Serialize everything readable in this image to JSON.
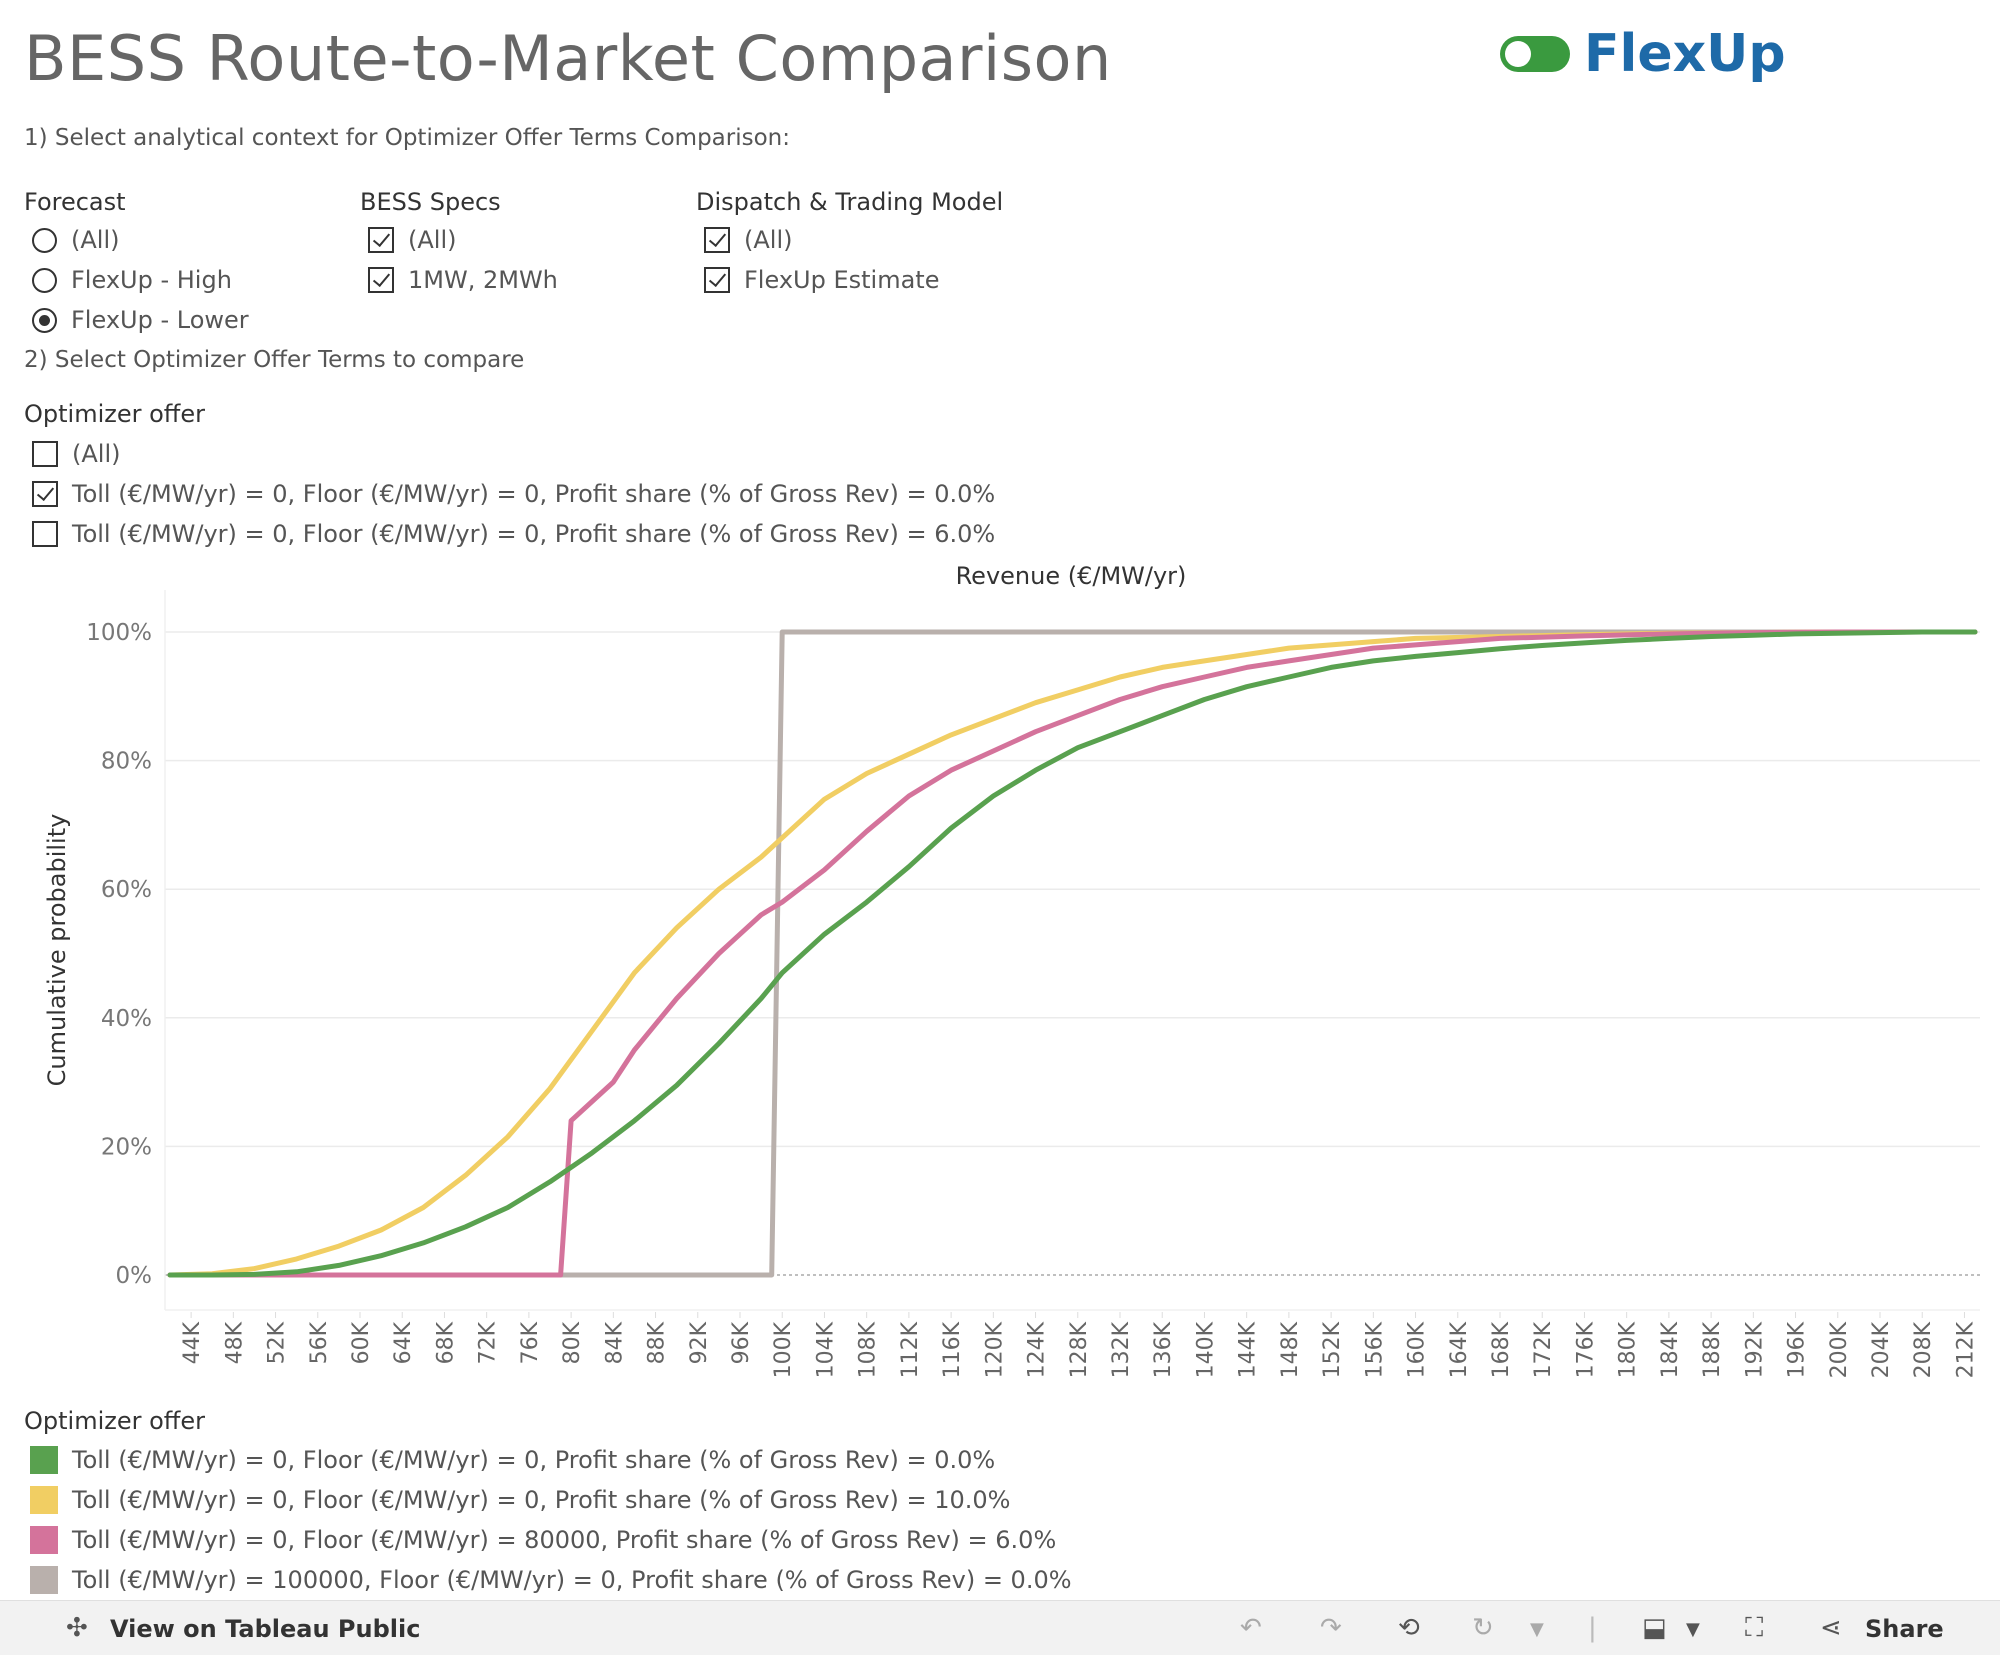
{
  "title": "BESS Route-to-Market Comparison",
  "logo": {
    "text": "FlexUp",
    "color": "#1e6aa8",
    "toggle_color": "#3a9a3f"
  },
  "step1": "1) Select analytical context for Optimizer Offer Terms Comparison:",
  "filters": {
    "forecast": {
      "title": "Forecast",
      "options": [
        {
          "label": "(All)",
          "selected": false
        },
        {
          "label": "FlexUp - High",
          "selected": false
        },
        {
          "label": "FlexUp - Lower",
          "selected": true
        }
      ]
    },
    "specs": {
      "title": "BESS Specs",
      "options": [
        {
          "label": "(All)",
          "checked": true
        },
        {
          "label": "1MW, 2MWh",
          "checked": true
        }
      ]
    },
    "dispatch": {
      "title": "Dispatch & Trading Model",
      "options": [
        {
          "label": "(All)",
          "checked": true
        },
        {
          "label": "FlexUp Estimate",
          "checked": true
        }
      ]
    }
  },
  "step2": "2) Select Optimizer Offer Terms to compare",
  "offer_filter": {
    "title": "Optimizer offer",
    "options": [
      {
        "label": "(All)",
        "checked": false
      },
      {
        "label": "Toll (€/MW/yr) = 0, Floor (€/MW/yr) = 0, Profit share (% of Gross Rev) = 0.0%",
        "checked": true
      },
      {
        "label": "Toll (€/MW/yr) = 0, Floor (€/MW/yr) = 0, Profit share (% of Gross Rev) = 6.0%",
        "checked": false
      }
    ]
  },
  "chart_data": {
    "type": "line",
    "title": "Revenue (€/MW/yr)",
    "xlabel": "Revenue (€/MW/yr)",
    "ylabel": "Cumulative probability",
    "xlim": [
      42000,
      213000
    ],
    "ylim": [
      0,
      1
    ],
    "x_ticks": [
      44000,
      48000,
      52000,
      56000,
      60000,
      64000,
      68000,
      72000,
      76000,
      80000,
      84000,
      88000,
      92000,
      96000,
      100000,
      104000,
      108000,
      112000,
      116000,
      120000,
      124000,
      128000,
      132000,
      136000,
      140000,
      144000,
      148000,
      152000,
      156000,
      160000,
      164000,
      168000,
      172000,
      176000,
      180000,
      184000,
      188000,
      192000,
      196000,
      200000,
      204000,
      208000,
      212000
    ],
    "x_tick_labels": [
      "44K",
      "48K",
      "52K",
      "56K",
      "60K",
      "64K",
      "68K",
      "72K",
      "76K",
      "80K",
      "84K",
      "88K",
      "92K",
      "96K",
      "100K",
      "104K",
      "108K",
      "112K",
      "116K",
      "120K",
      "124K",
      "128K",
      "132K",
      "136K",
      "140K",
      "144K",
      "148K",
      "152K",
      "156K",
      "160K",
      "164K",
      "168K",
      "172K",
      "176K",
      "180K",
      "184K",
      "188K",
      "192K",
      "196K",
      "200K",
      "204K",
      "208K",
      "212K"
    ],
    "y_ticks": [
      0,
      0.2,
      0.4,
      0.6,
      0.8,
      1.0
    ],
    "y_tick_labels": [
      "0%",
      "20%",
      "40%",
      "60%",
      "80%",
      "100%"
    ],
    "series": [
      {
        "name": "Toll (€/MW/yr) = 100000, Floor (€/MW/yr) = 0, Profit share (% of Gross Rev) = 0.0%",
        "color": "#b9b0ac",
        "x": [
          42000,
          99000,
          100000,
          213000
        ],
        "y": [
          0,
          0,
          1,
          1
        ]
      },
      {
        "name": "Toll (€/MW/yr) = 0, Floor (€/MW/yr) = 0, Profit share (% of Gross Rev) = 10.0%",
        "color": "#f1ce63",
        "x": [
          42000,
          46000,
          50000,
          54000,
          58000,
          62000,
          66000,
          70000,
          74000,
          78000,
          82000,
          86000,
          90000,
          94000,
          98000,
          100000,
          104000,
          108000,
          112000,
          116000,
          120000,
          124000,
          128000,
          132000,
          136000,
          140000,
          144000,
          148000,
          152000,
          156000,
          160000,
          168000,
          176000,
          184000,
          192000,
          200000,
          213000
        ],
        "y": [
          0,
          0.002,
          0.01,
          0.025,
          0.045,
          0.07,
          0.105,
          0.155,
          0.215,
          0.29,
          0.38,
          0.47,
          0.54,
          0.6,
          0.65,
          0.68,
          0.74,
          0.78,
          0.81,
          0.84,
          0.865,
          0.89,
          0.91,
          0.93,
          0.945,
          0.955,
          0.965,
          0.975,
          0.98,
          0.985,
          0.99,
          0.993,
          0.996,
          0.998,
          0.999,
          1.0,
          1.0
        ]
      },
      {
        "name": "Toll (€/MW/yr) = 0, Floor (€/MW/yr) = 80000, Profit share (% of Gross Rev) = 6.0%",
        "color": "#d4739b",
        "x": [
          42000,
          79000,
          80000,
          82000,
          84000,
          86000,
          88000,
          90000,
          92000,
          94000,
          96000,
          98000,
          100000,
          104000,
          108000,
          112000,
          116000,
          120000,
          124000,
          128000,
          132000,
          136000,
          140000,
          144000,
          148000,
          152000,
          156000,
          160000,
          168000,
          176000,
          184000,
          192000,
          200000,
          213000
        ],
        "y": [
          0,
          0,
          0.24,
          0.27,
          0.3,
          0.35,
          0.39,
          0.43,
          0.465,
          0.5,
          0.53,
          0.56,
          0.58,
          0.63,
          0.69,
          0.745,
          0.785,
          0.815,
          0.845,
          0.87,
          0.895,
          0.915,
          0.93,
          0.945,
          0.955,
          0.965,
          0.975,
          0.98,
          0.99,
          0.994,
          0.997,
          0.999,
          1.0,
          1.0
        ]
      },
      {
        "name": "Toll (€/MW/yr) = 0, Floor (€/MW/yr) = 0, Profit share (% of Gross Rev) = 0.0%",
        "color": "#59a14f",
        "x": [
          42000,
          46000,
          50000,
          54000,
          58000,
          62000,
          66000,
          70000,
          74000,
          78000,
          82000,
          86000,
          90000,
          94000,
          98000,
          100000,
          104000,
          108000,
          112000,
          116000,
          120000,
          124000,
          128000,
          132000,
          136000,
          140000,
          144000,
          148000,
          152000,
          156000,
          160000,
          164000,
          168000,
          172000,
          176000,
          180000,
          184000,
          188000,
          192000,
          196000,
          200000,
          204000,
          208000,
          213000
        ],
        "y": [
          0,
          0,
          0.001,
          0.005,
          0.015,
          0.03,
          0.05,
          0.075,
          0.105,
          0.145,
          0.19,
          0.24,
          0.295,
          0.36,
          0.43,
          0.47,
          0.53,
          0.58,
          0.635,
          0.695,
          0.745,
          0.785,
          0.82,
          0.845,
          0.87,
          0.895,
          0.915,
          0.93,
          0.945,
          0.955,
          0.962,
          0.968,
          0.974,
          0.979,
          0.983,
          0.987,
          0.99,
          0.993,
          0.995,
          0.997,
          0.998,
          0.999,
          1.0,
          1.0
        ]
      }
    ]
  },
  "legend": {
    "title": "Optimizer offer",
    "items": [
      {
        "label": "Toll (€/MW/yr) = 0, Floor (€/MW/yr) = 0, Profit share (% of Gross Rev) = 0.0%",
        "color": "#59a14f"
      },
      {
        "label": "Toll (€/MW/yr) = 0, Floor (€/MW/yr) = 0, Profit share (% of Gross Rev) = 10.0%",
        "color": "#f1ce63"
      },
      {
        "label": "Toll (€/MW/yr) = 0, Floor (€/MW/yr) = 80000, Profit share (% of Gross Rev) = 6.0%",
        "color": "#d4739b"
      },
      {
        "label": "Toll (€/MW/yr) = 100000, Floor (€/MW/yr) = 0, Profit share (% of Gross Rev) = 0.0%",
        "color": "#b9b0ac"
      }
    ]
  },
  "toolbar": {
    "view_label": "View on Tableau Public",
    "share_label": "Share"
  }
}
